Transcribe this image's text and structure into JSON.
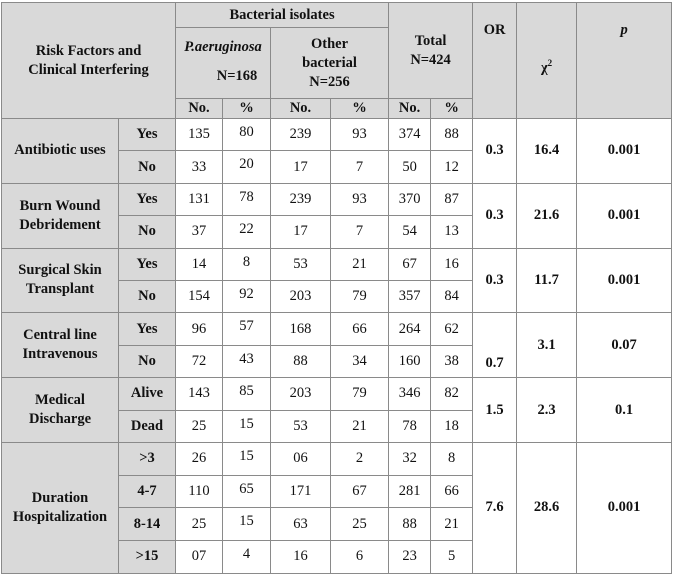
{
  "header": {
    "risk_factors": [
      "Risk Factors and",
      "Clinical Interfering"
    ],
    "bacterial_isolates": "Bacterial isolates",
    "pa_name": "P.aeruginosa",
    "pa_n": "N=168",
    "other": [
      "Other",
      "bacterial",
      "N=256"
    ],
    "total": [
      "Total",
      "N=424"
    ],
    "or": "OR",
    "chi": "χ",
    "chi_sup": "2",
    "p": "p",
    "sub": [
      "No.",
      "%",
      "No.",
      "%",
      "No.",
      "%"
    ]
  },
  "groups": [
    {
      "label": [
        "Antibiotic uses"
      ],
      "rows": [
        {
          "level": "Yes",
          "cells": [
            135,
            80,
            239,
            93,
            374,
            88
          ]
        },
        {
          "level": "No",
          "cells": [
            33,
            20,
            17,
            7,
            50,
            12
          ]
        }
      ],
      "or": 0.3,
      "chi2": 16.4,
      "p": 0.001
    },
    {
      "label": [
        "Burn Wound",
        "Debridement"
      ],
      "rows": [
        {
          "level": "Yes",
          "cells": [
            131,
            78,
            239,
            93,
            370,
            87
          ]
        },
        {
          "level": "No",
          "cells": [
            37,
            22,
            17,
            7,
            54,
            13
          ]
        }
      ],
      "or": 0.3,
      "chi2": 21.6,
      "p": 0.001
    },
    {
      "label": [
        "Surgical Skin",
        "Transplant"
      ],
      "rows": [
        {
          "level": "Yes",
          "cells": [
            14,
            8,
            53,
            21,
            67,
            16
          ]
        },
        {
          "level": "No",
          "cells": [
            154,
            92,
            203,
            79,
            357,
            84
          ]
        }
      ],
      "or": 0.3,
      "chi2": 11.7,
      "p": 0.001
    },
    {
      "label": [
        "Central line",
        "Intravenous"
      ],
      "rows": [
        {
          "level": "Yes",
          "cells": [
            96,
            57,
            168,
            66,
            264,
            62
          ]
        },
        {
          "level": "No",
          "cells": [
            72,
            43,
            88,
            34,
            160,
            38
          ]
        }
      ],
      "or": 0.7,
      "chi2": 3.1,
      "p": 0.07
    },
    {
      "label": [
        "Medical",
        "Discharge"
      ],
      "rows": [
        {
          "level": "Alive",
          "cells": [
            143,
            85,
            203,
            79,
            346,
            82
          ]
        },
        {
          "level": "Dead",
          "cells": [
            25,
            15,
            53,
            21,
            78,
            18
          ]
        }
      ],
      "or": 1.5,
      "chi2": 2.3,
      "p": 0.1
    },
    {
      "label": [
        "Duration",
        "Hospitalization"
      ],
      "rows": [
        {
          "level": ">3",
          "cells": [
            26,
            15,
            "06",
            2,
            32,
            8
          ]
        },
        {
          "level": "4-7",
          "cells": [
            110,
            65,
            171,
            67,
            281,
            66
          ]
        },
        {
          "level": "8-14",
          "cells": [
            25,
            15,
            63,
            25,
            88,
            21
          ]
        },
        {
          "level": ">15",
          "cells": [
            "07",
            4,
            16,
            6,
            23,
            5
          ]
        }
      ],
      "or": 7.6,
      "chi2": 28.6,
      "p": 0.001
    }
  ]
}
